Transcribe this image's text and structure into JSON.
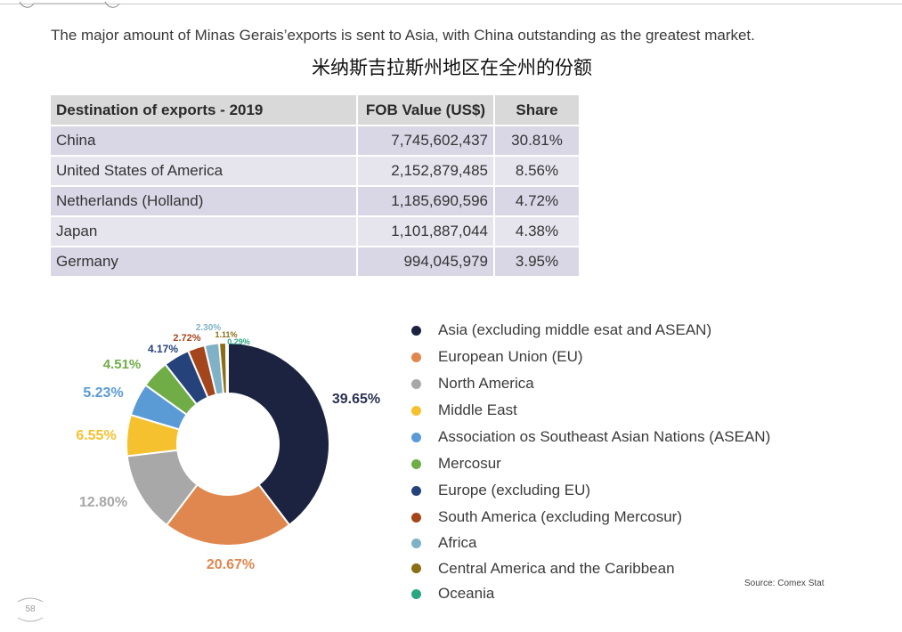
{
  "header": {
    "headline": "The major amount of Minas Gerais’exports is sent to Asia, with China outstanding as the greatest market.",
    "subtitle": "米纳斯吉拉斯州地区在全州的份额"
  },
  "table": {
    "headers": [
      "Destination of exports - 2019",
      "FOB Value (US$)",
      "Share"
    ],
    "rows": [
      [
        "China",
        "7,745,602,437",
        "30.81%"
      ],
      [
        "United States of America",
        "2,152,879,485",
        "8.56%"
      ],
      [
        "Netherlands (Holland)",
        "1,185,690,596",
        "4.72%"
      ],
      [
        "Japan",
        "1,101,887,044",
        "4.38%"
      ],
      [
        "Germany",
        "994,045,979",
        "3.95%"
      ]
    ]
  },
  "chart_data": {
    "type": "pie",
    "style": "donut",
    "categories": [
      "Asia (excluding middle esat and ASEAN)",
      "European Union (EU)",
      "North America",
      "Middle East",
      "Association os Southeast Asian Nations (ASEAN)",
      "Mercosur",
      "Europe (excluding EU)",
      "South America (excluding Mercosur)",
      "Africa",
      "Central America and the Caribbean",
      "Oceania"
    ],
    "values": [
      39.65,
      20.67,
      12.8,
      6.55,
      5.23,
      4.51,
      4.17,
      2.72,
      2.3,
      1.11,
      0.29
    ],
    "labels": [
      "39.65%",
      "20.67%",
      "12.80%",
      "6.55%",
      "5.23%",
      "4.51%",
      "4.17%",
      "2.72%",
      "2.30%",
      "1.11%",
      "0.29%"
    ],
    "colors": [
      "#1b2340",
      "#e0874f",
      "#a8a8a8",
      "#f6c12f",
      "#5a9bd5",
      "#70ad47",
      "#25427a",
      "#a5451c",
      "#7fb2c7",
      "#8b6d14",
      "#2aa782"
    ],
    "legend_position": "right"
  },
  "source": "Source: Comex Stat",
  "page_number": "58"
}
